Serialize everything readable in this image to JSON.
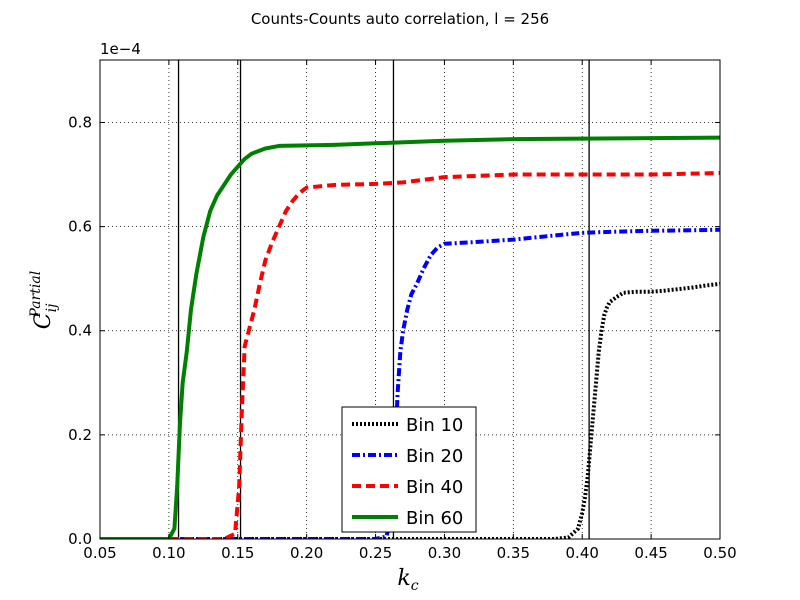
{
  "chart_data": {
    "type": "line",
    "title": "Counts-Counts auto correlation, l = 256",
    "xlabel_main": "k",
    "xlabel_sub": "c",
    "ylabel_main": "C",
    "ylabel_sub": "ij",
    "ylabel_sup": "Partial",
    "y_offset_text": "1e−4",
    "xlim": [
      0.05,
      0.5
    ],
    "ylim": [
      0.0,
      0.92
    ],
    "xticks": [
      0.05,
      0.1,
      0.15,
      0.2,
      0.25,
      0.3,
      0.35,
      0.4,
      0.45,
      0.5
    ],
    "xtick_labels": [
      "0.05",
      "0.10",
      "0.15",
      "0.20",
      "0.25",
      "0.30",
      "0.35",
      "0.40",
      "0.45",
      "0.50"
    ],
    "yticks": [
      0.0,
      0.2,
      0.4,
      0.6,
      0.8
    ],
    "ytick_labels": [
      "0.0",
      "0.2",
      "0.4",
      "0.6",
      "0.8"
    ],
    "grid": true,
    "legend_position": "lower-center",
    "vlines": [
      0.107,
      0.152,
      0.263,
      0.405
    ],
    "series": [
      {
        "name": "Bin 10",
        "color": "#000000",
        "style": "dotted",
        "x": [
          0.05,
          0.38,
          0.39,
          0.397,
          0.4,
          0.402,
          0.404,
          0.406,
          0.408,
          0.41,
          0.412,
          0.414,
          0.416,
          0.418,
          0.42,
          0.425,
          0.43,
          0.44,
          0.45,
          0.46,
          0.47,
          0.48,
          0.49,
          0.5
        ],
        "y": [
          0.0,
          0.0,
          0.003,
          0.02,
          0.05,
          0.08,
          0.12,
          0.18,
          0.24,
          0.3,
          0.36,
          0.4,
          0.43,
          0.445,
          0.455,
          0.465,
          0.473,
          0.475,
          0.475,
          0.477,
          0.48,
          0.483,
          0.487,
          0.49
        ]
      },
      {
        "name": "Bin 20",
        "color": "#0000ff",
        "style": "dashdot",
        "x": [
          0.05,
          0.25,
          0.258,
          0.262,
          0.264,
          0.266,
          0.268,
          0.27,
          0.273,
          0.276,
          0.28,
          0.285,
          0.29,
          0.295,
          0.3,
          0.32,
          0.35,
          0.38,
          0.4,
          0.42,
          0.45,
          0.48,
          0.5
        ],
        "y": [
          0.0,
          0.0,
          0.005,
          0.05,
          0.15,
          0.28,
          0.36,
          0.4,
          0.44,
          0.47,
          0.49,
          0.52,
          0.545,
          0.56,
          0.567,
          0.57,
          0.575,
          0.583,
          0.588,
          0.59,
          0.592,
          0.593,
          0.594
        ]
      },
      {
        "name": "Bin 40",
        "color": "#ff0000",
        "style": "dashed",
        "x": [
          0.05,
          0.14,
          0.148,
          0.151,
          0.153,
          0.155,
          0.158,
          0.162,
          0.166,
          0.17,
          0.175,
          0.18,
          0.185,
          0.19,
          0.195,
          0.2,
          0.22,
          0.25,
          0.27,
          0.3,
          0.35,
          0.4,
          0.45,
          0.5
        ],
        "y": [
          0.0,
          0.0,
          0.01,
          0.1,
          0.25,
          0.37,
          0.4,
          0.44,
          0.49,
          0.535,
          0.57,
          0.6,
          0.63,
          0.65,
          0.665,
          0.675,
          0.68,
          0.682,
          0.685,
          0.695,
          0.7,
          0.7,
          0.7,
          0.703
        ]
      },
      {
        "name": "Bin 60",
        "color": "#008000",
        "style": "solid",
        "x": [
          0.05,
          0.1,
          0.104,
          0.106,
          0.108,
          0.11,
          0.113,
          0.116,
          0.12,
          0.125,
          0.13,
          0.135,
          0.14,
          0.145,
          0.15,
          0.155,
          0.16,
          0.17,
          0.18,
          0.2,
          0.22,
          0.25,
          0.3,
          0.35,
          0.4,
          0.45,
          0.5
        ],
        "y": [
          0.0,
          0.0,
          0.02,
          0.1,
          0.22,
          0.3,
          0.36,
          0.44,
          0.51,
          0.58,
          0.63,
          0.66,
          0.68,
          0.7,
          0.715,
          0.73,
          0.74,
          0.75,
          0.755,
          0.756,
          0.757,
          0.76,
          0.765,
          0.768,
          0.769,
          0.77,
          0.771
        ]
      }
    ]
  }
}
